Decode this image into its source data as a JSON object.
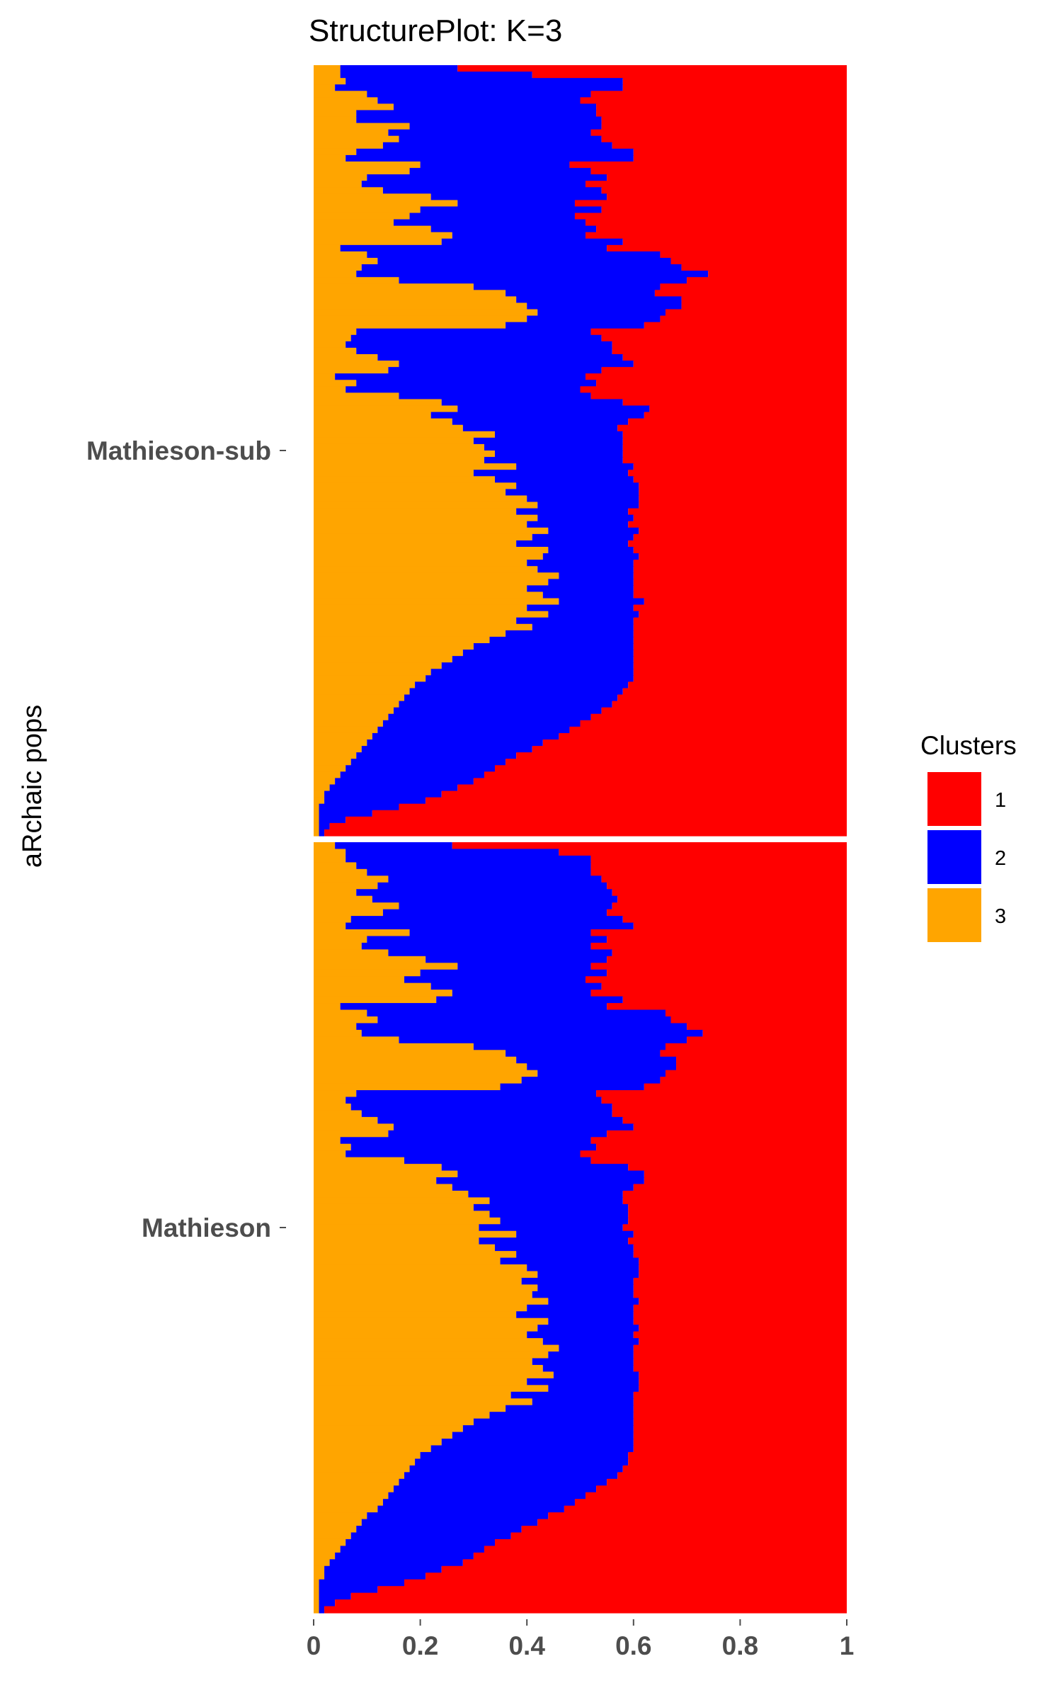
{
  "chart_data": {
    "type": "bar",
    "orientation": "horizontal-stacked",
    "title": "StructurePlot: K=3",
    "ylabel": "aRchaic pops",
    "xlabel": "",
    "xlim": [
      0,
      1
    ],
    "x_ticks": [
      {
        "value": 0,
        "label": "0"
      },
      {
        "value": 0.2,
        "label": "0.2"
      },
      {
        "value": 0.4,
        "label": "0.4"
      },
      {
        "value": 0.6,
        "label": "0.6"
      },
      {
        "value": 0.8,
        "label": "0.8"
      },
      {
        "value": 1,
        "label": "1"
      }
    ],
    "legend": {
      "title": "Clusters",
      "position": "right",
      "entries": [
        {
          "label": "1",
          "color": "#ff0000"
        },
        {
          "label": "2",
          "color": "#0000ff"
        },
        {
          "label": "3",
          "color": "#ffa500"
        }
      ]
    },
    "stack_order": [
      "3",
      "2",
      "1"
    ],
    "colors": {
      "1": "#ff0000",
      "2": "#0000ff",
      "3": "#ffa500"
    },
    "facets": [
      {
        "label": "Mathieson-sub",
        "samples": [
          [
            0.05,
            0.22,
            0.73
          ],
          [
            0.05,
            0.36,
            0.59
          ],
          [
            0.06,
            0.52,
            0.42
          ],
          [
            0.04,
            0.54,
            0.42
          ],
          [
            0.1,
            0.42,
            0.48
          ],
          [
            0.12,
            0.38,
            0.5
          ],
          [
            0.15,
            0.38,
            0.47
          ],
          [
            0.08,
            0.45,
            0.47
          ],
          [
            0.08,
            0.46,
            0.46
          ],
          [
            0.18,
            0.36,
            0.46
          ],
          [
            0.14,
            0.38,
            0.48
          ],
          [
            0.16,
            0.38,
            0.46
          ],
          [
            0.13,
            0.43,
            0.44
          ],
          [
            0.08,
            0.52,
            0.4
          ],
          [
            0.06,
            0.54,
            0.4
          ],
          [
            0.2,
            0.28,
            0.52
          ],
          [
            0.18,
            0.34,
            0.48
          ],
          [
            0.1,
            0.45,
            0.45
          ],
          [
            0.09,
            0.42,
            0.49
          ],
          [
            0.13,
            0.41,
            0.46
          ],
          [
            0.22,
            0.33,
            0.45
          ],
          [
            0.27,
            0.22,
            0.51
          ],
          [
            0.2,
            0.34,
            0.46
          ],
          [
            0.18,
            0.31,
            0.51
          ],
          [
            0.15,
            0.36,
            0.49
          ],
          [
            0.22,
            0.31,
            0.47
          ],
          [
            0.26,
            0.25,
            0.49
          ],
          [
            0.24,
            0.34,
            0.42
          ],
          [
            0.05,
            0.5,
            0.45
          ],
          [
            0.1,
            0.55,
            0.35
          ],
          [
            0.12,
            0.55,
            0.33
          ],
          [
            0.09,
            0.6,
            0.31
          ],
          [
            0.08,
            0.66,
            0.26
          ],
          [
            0.16,
            0.54,
            0.3
          ],
          [
            0.3,
            0.35,
            0.35
          ],
          [
            0.36,
            0.28,
            0.36
          ],
          [
            0.38,
            0.31,
            0.31
          ],
          [
            0.4,
            0.29,
            0.31
          ],
          [
            0.42,
            0.24,
            0.34
          ],
          [
            0.4,
            0.25,
            0.35
          ],
          [
            0.36,
            0.26,
            0.38
          ],
          [
            0.08,
            0.44,
            0.48
          ],
          [
            0.07,
            0.47,
            0.46
          ],
          [
            0.06,
            0.5,
            0.44
          ],
          [
            0.08,
            0.48,
            0.44
          ],
          [
            0.12,
            0.46,
            0.42
          ],
          [
            0.16,
            0.44,
            0.4
          ],
          [
            0.14,
            0.4,
            0.46
          ],
          [
            0.04,
            0.47,
            0.49
          ],
          [
            0.08,
            0.45,
            0.47
          ],
          [
            0.06,
            0.44,
            0.5
          ],
          [
            0.16,
            0.36,
            0.48
          ],
          [
            0.24,
            0.34,
            0.42
          ],
          [
            0.27,
            0.36,
            0.37
          ],
          [
            0.22,
            0.4,
            0.38
          ],
          [
            0.26,
            0.33,
            0.41
          ],
          [
            0.28,
            0.29,
            0.43
          ],
          [
            0.34,
            0.24,
            0.42
          ],
          [
            0.3,
            0.28,
            0.42
          ],
          [
            0.32,
            0.26,
            0.42
          ],
          [
            0.34,
            0.24,
            0.42
          ],
          [
            0.32,
            0.26,
            0.42
          ],
          [
            0.38,
            0.22,
            0.4
          ],
          [
            0.3,
            0.29,
            0.41
          ],
          [
            0.34,
            0.26,
            0.4
          ],
          [
            0.38,
            0.23,
            0.39
          ],
          [
            0.36,
            0.25,
            0.39
          ],
          [
            0.4,
            0.21,
            0.39
          ],
          [
            0.42,
            0.19,
            0.39
          ],
          [
            0.38,
            0.21,
            0.41
          ],
          [
            0.42,
            0.18,
            0.4
          ],
          [
            0.4,
            0.19,
            0.41
          ],
          [
            0.44,
            0.17,
            0.39
          ],
          [
            0.41,
            0.19,
            0.4
          ],
          [
            0.38,
            0.21,
            0.41
          ],
          [
            0.44,
            0.16,
            0.4
          ],
          [
            0.43,
            0.18,
            0.39
          ],
          [
            0.4,
            0.2,
            0.4
          ],
          [
            0.42,
            0.18,
            0.4
          ],
          [
            0.46,
            0.14,
            0.4
          ],
          [
            0.44,
            0.16,
            0.4
          ],
          [
            0.4,
            0.2,
            0.4
          ],
          [
            0.43,
            0.17,
            0.4
          ],
          [
            0.46,
            0.16,
            0.38
          ],
          [
            0.4,
            0.2,
            0.4
          ],
          [
            0.44,
            0.17,
            0.39
          ],
          [
            0.38,
            0.22,
            0.4
          ],
          [
            0.41,
            0.19,
            0.4
          ],
          [
            0.36,
            0.24,
            0.4
          ],
          [
            0.33,
            0.27,
            0.4
          ],
          [
            0.3,
            0.3,
            0.4
          ],
          [
            0.28,
            0.32,
            0.4
          ],
          [
            0.26,
            0.34,
            0.4
          ],
          [
            0.24,
            0.36,
            0.4
          ],
          [
            0.22,
            0.38,
            0.4
          ],
          [
            0.21,
            0.39,
            0.4
          ],
          [
            0.19,
            0.4,
            0.41
          ],
          [
            0.18,
            0.4,
            0.42
          ],
          [
            0.17,
            0.4,
            0.43
          ],
          [
            0.16,
            0.4,
            0.44
          ],
          [
            0.15,
            0.39,
            0.46
          ],
          [
            0.14,
            0.38,
            0.48
          ],
          [
            0.13,
            0.37,
            0.5
          ],
          [
            0.12,
            0.36,
            0.52
          ],
          [
            0.11,
            0.35,
            0.54
          ],
          [
            0.1,
            0.33,
            0.57
          ],
          [
            0.09,
            0.32,
            0.59
          ],
          [
            0.08,
            0.3,
            0.62
          ],
          [
            0.07,
            0.29,
            0.64
          ],
          [
            0.06,
            0.28,
            0.66
          ],
          [
            0.05,
            0.27,
            0.68
          ],
          [
            0.04,
            0.26,
            0.7
          ],
          [
            0.03,
            0.24,
            0.73
          ],
          [
            0.02,
            0.22,
            0.76
          ],
          [
            0.02,
            0.19,
            0.79
          ],
          [
            0.01,
            0.15,
            0.84
          ],
          [
            0.01,
            0.1,
            0.89
          ],
          [
            0.01,
            0.05,
            0.94
          ],
          [
            0.01,
            0.02,
            0.97
          ],
          [
            0.01,
            0.01,
            0.98
          ]
        ]
      },
      {
        "label": "Mathieson",
        "samples": [
          [
            0.04,
            0.22,
            0.74
          ],
          [
            0.06,
            0.4,
            0.54
          ],
          [
            0.06,
            0.46,
            0.48
          ],
          [
            0.08,
            0.44,
            0.48
          ],
          [
            0.1,
            0.42,
            0.48
          ],
          [
            0.14,
            0.4,
            0.46
          ],
          [
            0.12,
            0.43,
            0.45
          ],
          [
            0.08,
            0.48,
            0.44
          ],
          [
            0.11,
            0.46,
            0.43
          ],
          [
            0.16,
            0.4,
            0.44
          ],
          [
            0.13,
            0.42,
            0.45
          ],
          [
            0.07,
            0.51,
            0.42
          ],
          [
            0.06,
            0.54,
            0.4
          ],
          [
            0.18,
            0.34,
            0.48
          ],
          [
            0.1,
            0.45,
            0.45
          ],
          [
            0.09,
            0.43,
            0.48
          ],
          [
            0.14,
            0.42,
            0.44
          ],
          [
            0.21,
            0.34,
            0.45
          ],
          [
            0.27,
            0.25,
            0.48
          ],
          [
            0.2,
            0.35,
            0.45
          ],
          [
            0.17,
            0.34,
            0.49
          ],
          [
            0.22,
            0.32,
            0.46
          ],
          [
            0.26,
            0.26,
            0.48
          ],
          [
            0.23,
            0.35,
            0.42
          ],
          [
            0.05,
            0.5,
            0.45
          ],
          [
            0.1,
            0.56,
            0.34
          ],
          [
            0.12,
            0.55,
            0.33
          ],
          [
            0.08,
            0.62,
            0.3
          ],
          [
            0.09,
            0.64,
            0.27
          ],
          [
            0.16,
            0.54,
            0.3
          ],
          [
            0.3,
            0.36,
            0.34
          ],
          [
            0.36,
            0.29,
            0.35
          ],
          [
            0.38,
            0.3,
            0.32
          ],
          [
            0.4,
            0.28,
            0.32
          ],
          [
            0.42,
            0.24,
            0.34
          ],
          [
            0.39,
            0.26,
            0.35
          ],
          [
            0.35,
            0.27,
            0.38
          ],
          [
            0.08,
            0.45,
            0.47
          ],
          [
            0.06,
            0.48,
            0.46
          ],
          [
            0.07,
            0.49,
            0.44
          ],
          [
            0.09,
            0.47,
            0.44
          ],
          [
            0.12,
            0.46,
            0.42
          ],
          [
            0.15,
            0.45,
            0.4
          ],
          [
            0.14,
            0.41,
            0.45
          ],
          [
            0.05,
            0.47,
            0.48
          ],
          [
            0.07,
            0.46,
            0.47
          ],
          [
            0.06,
            0.44,
            0.5
          ],
          [
            0.17,
            0.35,
            0.48
          ],
          [
            0.24,
            0.35,
            0.41
          ],
          [
            0.27,
            0.35,
            0.38
          ],
          [
            0.23,
            0.39,
            0.38
          ],
          [
            0.26,
            0.34,
            0.4
          ],
          [
            0.29,
            0.29,
            0.42
          ],
          [
            0.33,
            0.25,
            0.42
          ],
          [
            0.3,
            0.29,
            0.41
          ],
          [
            0.33,
            0.26,
            0.41
          ],
          [
            0.35,
            0.24,
            0.41
          ],
          [
            0.31,
            0.27,
            0.42
          ],
          [
            0.38,
            0.22,
            0.4
          ],
          [
            0.31,
            0.28,
            0.41
          ],
          [
            0.34,
            0.26,
            0.4
          ],
          [
            0.38,
            0.22,
            0.4
          ],
          [
            0.35,
            0.26,
            0.39
          ],
          [
            0.4,
            0.21,
            0.39
          ],
          [
            0.42,
            0.19,
            0.39
          ],
          [
            0.39,
            0.21,
            0.4
          ],
          [
            0.42,
            0.18,
            0.4
          ],
          [
            0.41,
            0.19,
            0.4
          ],
          [
            0.44,
            0.17,
            0.39
          ],
          [
            0.4,
            0.2,
            0.4
          ],
          [
            0.38,
            0.22,
            0.4
          ],
          [
            0.44,
            0.16,
            0.4
          ],
          [
            0.42,
            0.19,
            0.39
          ],
          [
            0.4,
            0.2,
            0.4
          ],
          [
            0.43,
            0.18,
            0.39
          ],
          [
            0.46,
            0.14,
            0.4
          ],
          [
            0.44,
            0.16,
            0.4
          ],
          [
            0.41,
            0.19,
            0.4
          ],
          [
            0.43,
            0.17,
            0.4
          ],
          [
            0.45,
            0.16,
            0.39
          ],
          [
            0.4,
            0.21,
            0.39
          ],
          [
            0.44,
            0.17,
            0.39
          ],
          [
            0.37,
            0.23,
            0.4
          ],
          [
            0.41,
            0.19,
            0.4
          ],
          [
            0.36,
            0.24,
            0.4
          ],
          [
            0.33,
            0.27,
            0.4
          ],
          [
            0.3,
            0.3,
            0.4
          ],
          [
            0.28,
            0.32,
            0.4
          ],
          [
            0.26,
            0.34,
            0.4
          ],
          [
            0.24,
            0.36,
            0.4
          ],
          [
            0.22,
            0.38,
            0.4
          ],
          [
            0.2,
            0.39,
            0.41
          ],
          [
            0.19,
            0.4,
            0.41
          ],
          [
            0.18,
            0.4,
            0.42
          ],
          [
            0.17,
            0.4,
            0.43
          ],
          [
            0.16,
            0.39,
            0.45
          ],
          [
            0.15,
            0.38,
            0.47
          ],
          [
            0.14,
            0.37,
            0.49
          ],
          [
            0.13,
            0.36,
            0.51
          ],
          [
            0.12,
            0.35,
            0.53
          ],
          [
            0.1,
            0.34,
            0.56
          ],
          [
            0.09,
            0.33,
            0.58
          ],
          [
            0.08,
            0.31,
            0.61
          ],
          [
            0.07,
            0.3,
            0.63
          ],
          [
            0.06,
            0.28,
            0.66
          ],
          [
            0.05,
            0.27,
            0.68
          ],
          [
            0.04,
            0.26,
            0.7
          ],
          [
            0.03,
            0.25,
            0.72
          ],
          [
            0.02,
            0.22,
            0.76
          ],
          [
            0.02,
            0.19,
            0.79
          ],
          [
            0.01,
            0.16,
            0.83
          ],
          [
            0.01,
            0.11,
            0.88
          ],
          [
            0.01,
            0.06,
            0.93
          ],
          [
            0.01,
            0.03,
            0.96
          ],
          [
            0.01,
            0.01,
            0.98
          ]
        ]
      }
    ]
  }
}
